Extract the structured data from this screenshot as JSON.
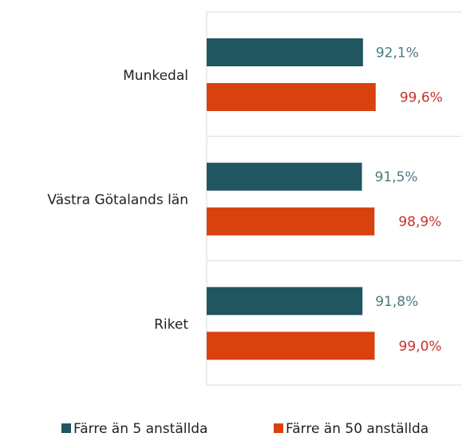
{
  "chart_data": {
    "type": "hbar",
    "categories": [
      "Munkedal",
      "Västra Götalands län",
      "Riket"
    ],
    "series": [
      {
        "name": "Färre än 5 anställda",
        "color": "#1f5660",
        "label_color": "#4d7b80",
        "values": [
          92.1,
          91.5,
          91.8
        ],
        "value_labels": [
          "92,1%",
          "91,5%",
          "91,8%"
        ]
      },
      {
        "name": "Färre än 50 anställda",
        "color": "#d9410f",
        "label_color": "#c8322a",
        "values": [
          99.6,
          98.9,
          99.0
        ],
        "value_labels": [
          "99,6%",
          "98,9%",
          "99,0%"
        ]
      }
    ],
    "xlim": [
      0,
      150
    ],
    "legend": "bottom"
  }
}
